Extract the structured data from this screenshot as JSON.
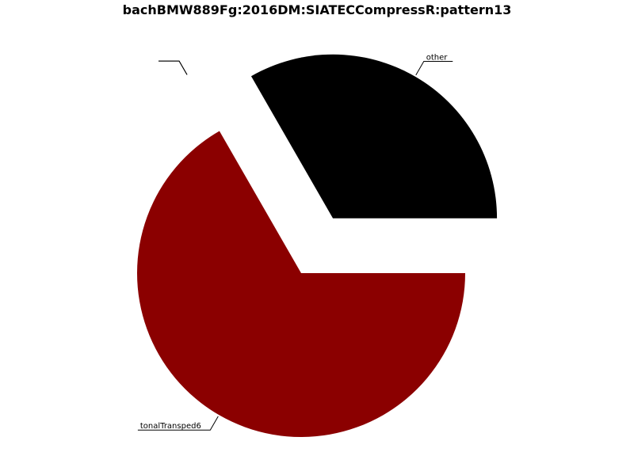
{
  "chart_data": {
    "type": "pie",
    "title": "bachBMW889Fg:2016DM:SIATECCompressR:pattern13",
    "categories": [
      "other",
      "",
      "",
      "tonalTransped6"
    ],
    "values": [
      33.3,
      0,
      0,
      66.7
    ],
    "colors": [
      "#000000",
      "#ffffff",
      "#ffffff",
      "#8b0000"
    ],
    "exploded": [
      true,
      true,
      true,
      false
    ],
    "start_angle_deg": 0,
    "direction": "counterclockwise",
    "legend": "none"
  }
}
